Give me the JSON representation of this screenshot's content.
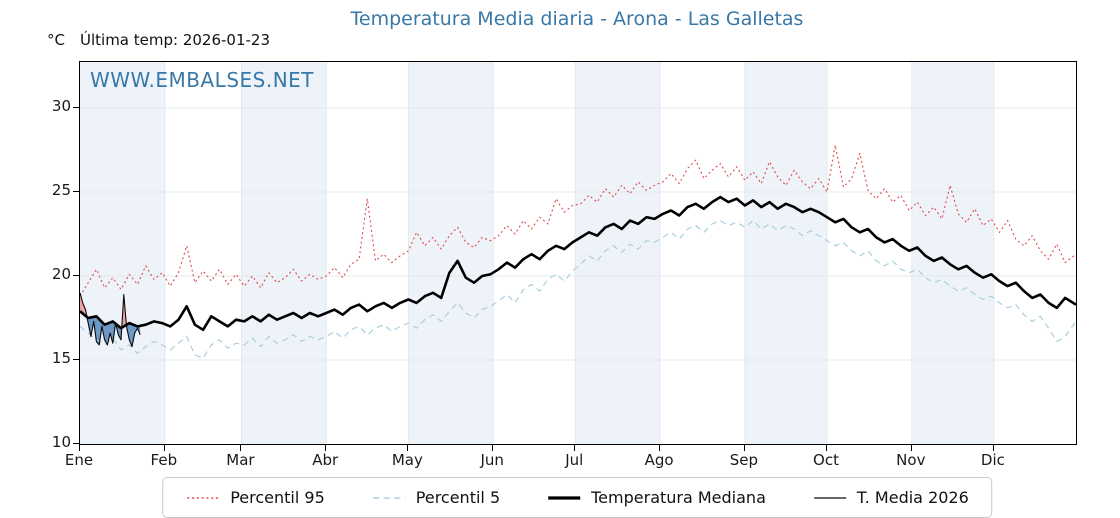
{
  "header": {
    "degree_label": "°C",
    "last_temp_label": "Última temp: 2026-01-23"
  },
  "title": "Temperatura Media diaria - Arona - Las Galletas",
  "watermark": "WWW.EMBALSES.NET",
  "chart_data": {
    "type": "line",
    "title": "Temperatura Media diaria - Arona - Las Galletas",
    "ylabel": "°C",
    "ylim": [
      10,
      32.74
    ],
    "yticks": [
      10,
      15,
      20,
      25,
      30
    ],
    "grid": true,
    "legend_position": "bottom-center",
    "days_in_year": 365,
    "x_months": [
      "Ene",
      "Feb",
      "Mar",
      "Abr",
      "May",
      "Jun",
      "Jul",
      "Ago",
      "Sep",
      "Oct",
      "Nov",
      "Dic"
    ],
    "month_start_days": [
      1,
      32,
      60,
      91,
      121,
      152,
      182,
      213,
      244,
      274,
      305,
      335
    ],
    "shaded_month_indices": [
      0,
      2,
      4,
      6,
      8,
      10
    ],
    "colors": {
      "band": "#eef3f9",
      "grid": "#e4e8ec",
      "axis": "#000000",
      "title": "#3878a8",
      "watermark": "#3878a8",
      "fill_above": "#ef9a9a",
      "fill_below": "#5d8fc0"
    },
    "series": [
      {
        "name": "Percentil 95",
        "color": "#e04a4a",
        "style": "dotted",
        "width": 1.1,
        "x": [
          1,
          4,
          7,
          10,
          13,
          16,
          19,
          22,
          25,
          28,
          31,
          34,
          37,
          40,
          43,
          46,
          49,
          52,
          55,
          58,
          61,
          64,
          67,
          70,
          73,
          76,
          79,
          82,
          85,
          88,
          91,
          94,
          97,
          100,
          103,
          106,
          109,
          112,
          115,
          118,
          121,
          124,
          127,
          130,
          133,
          136,
          139,
          142,
          145,
          148,
          151,
          154,
          157,
          160,
          163,
          166,
          169,
          172,
          175,
          178,
          181,
          184,
          187,
          190,
          193,
          196,
          199,
          202,
          205,
          208,
          211,
          214,
          217,
          220,
          223,
          226,
          229,
          232,
          235,
          238,
          241,
          244,
          247,
          250,
          253,
          256,
          259,
          262,
          265,
          268,
          271,
          274,
          277,
          280,
          283,
          286,
          289,
          292,
          295,
          298,
          301,
          304,
          307,
          310,
          313,
          316,
          319,
          322,
          325,
          328,
          331,
          334,
          337,
          340,
          343,
          346,
          349,
          352,
          355,
          358,
          361,
          365
        ],
        "values": [
          18.8,
          19.6,
          20.4,
          19.3,
          19.9,
          19.2,
          20.1,
          19.5,
          20.6,
          19.8,
          20.2,
          19.4,
          20.2,
          21.8,
          19.6,
          20.3,
          19.7,
          20.4,
          19.5,
          20.1,
          19.4,
          20.0,
          19.3,
          20.2,
          19.6,
          19.9,
          20.4,
          19.7,
          20.1,
          19.8,
          20.0,
          20.5,
          19.9,
          20.7,
          21.0,
          24.6,
          20.9,
          21.3,
          20.8,
          21.2,
          21.5,
          22.6,
          21.8,
          22.3,
          21.6,
          22.4,
          22.9,
          22.0,
          21.7,
          22.3,
          22.1,
          22.4,
          23.0,
          22.5,
          23.3,
          22.8,
          23.5,
          23.1,
          24.6,
          23.8,
          24.2,
          24.3,
          24.8,
          24.4,
          25.2,
          24.7,
          25.4,
          24.9,
          25.6,
          25.1,
          25.4,
          25.6,
          26.1,
          25.5,
          26.4,
          26.9,
          25.8,
          26.3,
          26.7,
          25.9,
          26.5,
          25.7,
          26.2,
          25.5,
          26.8,
          25.9,
          25.4,
          26.3,
          25.6,
          25.2,
          25.8,
          25.0,
          27.8,
          25.3,
          25.8,
          27.3,
          25.1,
          24.6,
          25.2,
          24.4,
          24.8,
          23.9,
          24.4,
          23.6,
          24.1,
          23.4,
          25.4,
          23.7,
          23.2,
          24.0,
          23.0,
          23.4,
          22.6,
          23.3,
          22.2,
          21.8,
          22.4,
          21.5,
          21.0,
          21.9,
          20.8,
          21.3
        ]
      },
      {
        "name": "Percentil 5",
        "color": "#a9cfe0",
        "style": "dashed",
        "width": 1.2,
        "x": [
          1,
          4,
          7,
          10,
          13,
          16,
          19,
          22,
          25,
          28,
          31,
          34,
          37,
          40,
          43,
          46,
          49,
          52,
          55,
          58,
          61,
          64,
          67,
          70,
          73,
          76,
          79,
          82,
          85,
          88,
          91,
          94,
          97,
          100,
          103,
          106,
          109,
          112,
          115,
          118,
          121,
          124,
          127,
          130,
          133,
          136,
          139,
          142,
          145,
          148,
          151,
          154,
          157,
          160,
          163,
          166,
          169,
          172,
          175,
          178,
          181,
          184,
          187,
          190,
          193,
          196,
          199,
          202,
          205,
          208,
          211,
          214,
          217,
          220,
          223,
          226,
          229,
          232,
          235,
          238,
          241,
          244,
          247,
          250,
          253,
          256,
          259,
          262,
          265,
          268,
          271,
          274,
          277,
          280,
          283,
          286,
          289,
          292,
          295,
          298,
          301,
          304,
          307,
          310,
          313,
          316,
          319,
          322,
          325,
          328,
          331,
          334,
          337,
          340,
          343,
          346,
          349,
          352,
          355,
          358,
          361,
          365
        ],
        "values": [
          17.0,
          16.6,
          16.2,
          15.9,
          16.3,
          15.6,
          15.9,
          15.4,
          15.8,
          16.1,
          15.9,
          15.6,
          16.0,
          16.4,
          15.3,
          15.1,
          15.9,
          16.2,
          15.7,
          16.0,
          15.9,
          16.3,
          15.8,
          16.4,
          16.0,
          16.2,
          16.5,
          16.1,
          16.4,
          16.2,
          16.4,
          16.7,
          16.3,
          16.8,
          17.0,
          16.5,
          16.9,
          17.1,
          16.7,
          17.0,
          17.2,
          16.9,
          17.4,
          17.7,
          17.3,
          17.9,
          18.4,
          17.8,
          17.5,
          18.0,
          18.2,
          18.5,
          18.9,
          18.4,
          19.2,
          19.5,
          19.1,
          19.8,
          20.1,
          19.7,
          20.3,
          20.7,
          21.2,
          20.9,
          21.5,
          21.8,
          21.4,
          21.9,
          21.6,
          22.1,
          22.0,
          22.3,
          22.6,
          22.2,
          22.8,
          23.0,
          22.6,
          23.1,
          23.3,
          23.0,
          23.2,
          22.9,
          23.3,
          22.8,
          23.1,
          22.7,
          23.0,
          22.8,
          22.4,
          22.7,
          22.4,
          22.1,
          21.8,
          22.0,
          21.5,
          21.2,
          21.5,
          20.9,
          20.6,
          20.9,
          20.4,
          20.2,
          20.4,
          19.9,
          19.6,
          19.8,
          19.4,
          19.1,
          19.3,
          18.9,
          18.6,
          18.8,
          18.4,
          18.1,
          18.3,
          17.7,
          17.3,
          17.6,
          16.9,
          16.1,
          16.4,
          17.3
        ]
      },
      {
        "name": "Temperatura Mediana",
        "color": "#000000",
        "style": "solid",
        "width": 2.6,
        "x": [
          1,
          4,
          7,
          10,
          13,
          16,
          19,
          22,
          25,
          28,
          31,
          34,
          37,
          40,
          43,
          46,
          49,
          52,
          55,
          58,
          61,
          64,
          67,
          70,
          73,
          76,
          79,
          82,
          85,
          88,
          91,
          94,
          97,
          100,
          103,
          106,
          109,
          112,
          115,
          118,
          121,
          124,
          127,
          130,
          133,
          136,
          139,
          142,
          145,
          148,
          151,
          154,
          157,
          160,
          163,
          166,
          169,
          172,
          175,
          178,
          181,
          184,
          187,
          190,
          193,
          196,
          199,
          202,
          205,
          208,
          211,
          214,
          217,
          220,
          223,
          226,
          229,
          232,
          235,
          238,
          241,
          244,
          247,
          250,
          253,
          256,
          259,
          262,
          265,
          268,
          271,
          274,
          277,
          280,
          283,
          286,
          289,
          292,
          295,
          298,
          301,
          304,
          307,
          310,
          313,
          316,
          319,
          322,
          325,
          328,
          331,
          334,
          337,
          340,
          343,
          346,
          349,
          352,
          355,
          358,
          361,
          365
        ],
        "values": [
          17.9,
          17.5,
          17.6,
          17.1,
          17.3,
          16.9,
          17.2,
          17.0,
          17.1,
          17.3,
          17.2,
          17.0,
          17.4,
          18.2,
          17.1,
          16.8,
          17.6,
          17.3,
          17.0,
          17.4,
          17.3,
          17.6,
          17.3,
          17.7,
          17.4,
          17.6,
          17.8,
          17.5,
          17.8,
          17.6,
          17.8,
          18.0,
          17.7,
          18.1,
          18.3,
          17.9,
          18.2,
          18.4,
          18.1,
          18.4,
          18.6,
          18.4,
          18.8,
          19.0,
          18.7,
          20.2,
          20.9,
          19.9,
          19.6,
          20.0,
          20.1,
          20.4,
          20.8,
          20.5,
          21.0,
          21.3,
          21.0,
          21.5,
          21.8,
          21.6,
          22.0,
          22.3,
          22.6,
          22.4,
          22.9,
          23.1,
          22.8,
          23.3,
          23.1,
          23.5,
          23.4,
          23.7,
          23.9,
          23.6,
          24.1,
          24.3,
          24.0,
          24.4,
          24.7,
          24.4,
          24.6,
          24.2,
          24.5,
          24.1,
          24.4,
          24.0,
          24.3,
          24.1,
          23.8,
          24.0,
          23.8,
          23.5,
          23.2,
          23.4,
          22.9,
          22.6,
          22.8,
          22.3,
          22.0,
          22.2,
          21.8,
          21.5,
          21.7,
          21.2,
          20.9,
          21.1,
          20.7,
          20.4,
          20.6,
          20.2,
          19.9,
          20.1,
          19.7,
          19.4,
          19.6,
          19.1,
          18.7,
          18.9,
          18.4,
          18.1,
          18.7,
          18.3
        ]
      },
      {
        "name": "T. Media 2026",
        "color": "#0a0a0a",
        "style": "solid",
        "width": 1.1,
        "x": [
          1,
          2,
          3,
          4,
          5,
          6,
          7,
          8,
          9,
          10,
          11,
          12,
          13,
          14,
          15,
          16,
          17,
          18,
          19,
          20,
          21,
          22,
          23
        ],
        "values": [
          19.0,
          18.4,
          18.0,
          17.2,
          16.4,
          17.3,
          16.1,
          15.9,
          17.0,
          16.2,
          15.9,
          16.6,
          16.0,
          17.2,
          16.5,
          16.2,
          18.9,
          17.0,
          16.2,
          15.8,
          16.6,
          16.9,
          16.5
        ]
      }
    ],
    "fill_between": {
      "upper_series": "T. Media 2026",
      "base_series": "Temperatura Mediana",
      "above_color": "#ef9a9a",
      "below_color": "#5d8fc0",
      "opacity": 0.9
    }
  }
}
